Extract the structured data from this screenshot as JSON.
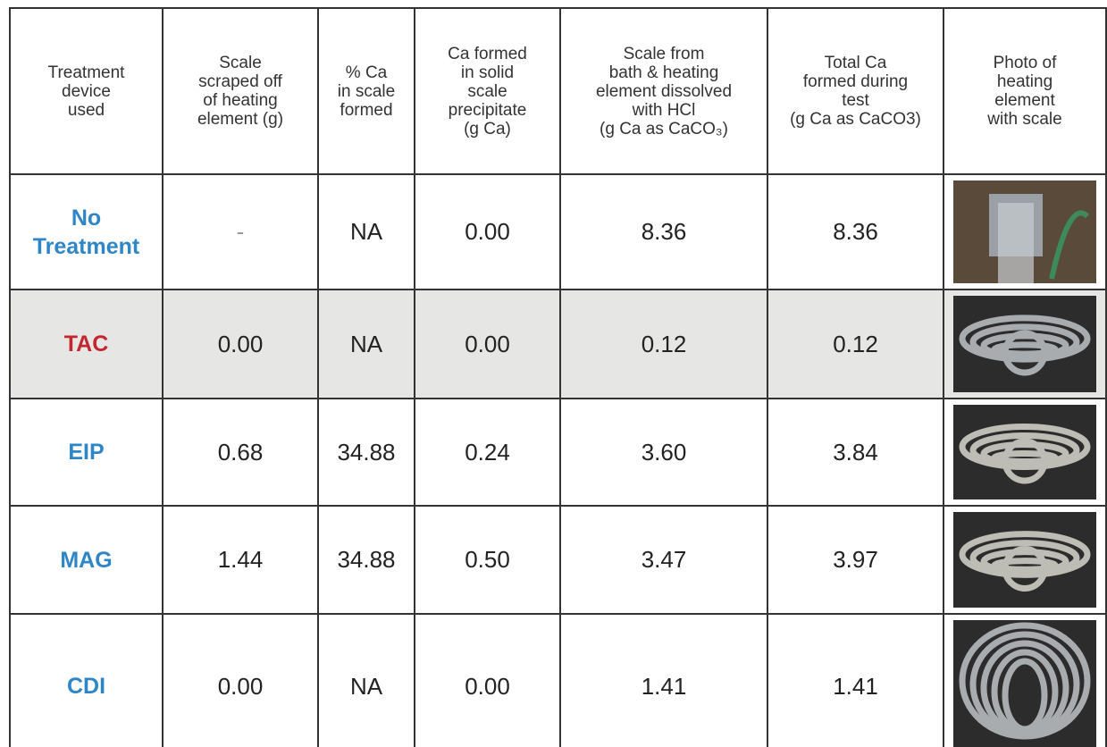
{
  "table": {
    "header": [
      [
        "Treatment",
        "device",
        "used"
      ],
      [
        "Scale",
        "scraped off",
        "of heating",
        "element (g)"
      ],
      [
        "% Ca",
        "in scale",
        "formed"
      ],
      [
        "Ca formed",
        "in solid",
        "scale",
        "precipitate",
        "(g Ca)"
      ],
      [
        "Scale from",
        "bath & heating",
        "element dissolved",
        "with HCl",
        "(g Ca as CaCO₃)"
      ],
      [
        "Total Ca",
        "formed during",
        "test",
        "(g Ca as CaCO3)"
      ],
      [
        "Photo of",
        "heating",
        "element",
        "with scale"
      ]
    ],
    "rows": [
      {
        "label": [
          "No",
          "Treatment"
        ],
        "color": "#2f86c6",
        "cells": [
          "-",
          "NA",
          "0.00",
          "8.36",
          "8.36"
        ]
      },
      {
        "label": [
          "TAC"
        ],
        "color": "#c4262e",
        "cells": [
          "0.00",
          "NA",
          "0.00",
          "0.12",
          "0.12"
        ]
      },
      {
        "label": [
          "EIP"
        ],
        "color": "#2f86c6",
        "cells": [
          "0.68",
          "34.88",
          "0.24",
          "3.60",
          "3.84"
        ]
      },
      {
        "label": [
          "MAG"
        ],
        "color": "#2f86c6",
        "cells": [
          "1.44",
          "34.88",
          "0.50",
          "3.47",
          "3.97"
        ]
      },
      {
        "label": [
          "CDI"
        ],
        "color": "#2f86c6",
        "cells": [
          "0.00",
          "NA",
          "0.00",
          "1.41",
          "1.41"
        ]
      }
    ]
  }
}
